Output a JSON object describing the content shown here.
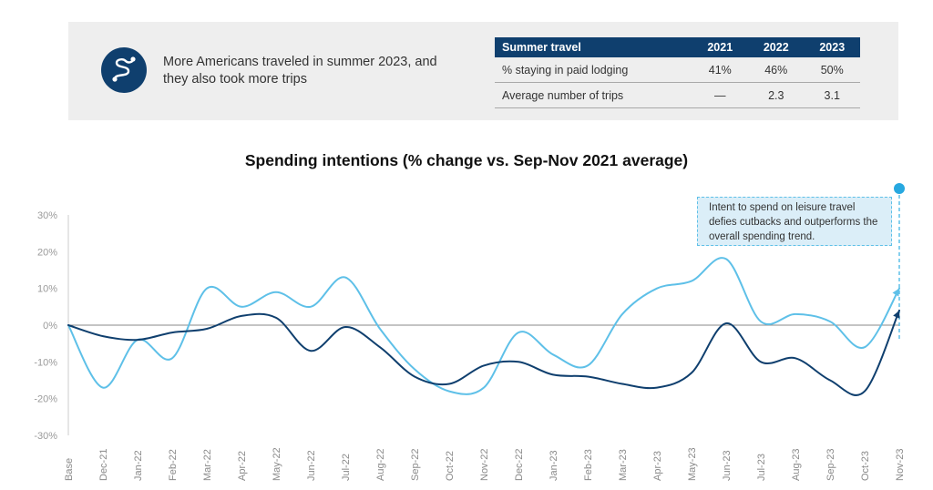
{
  "summary": {
    "icon": "travel-route-icon",
    "headline": "More Americans traveled in summer 2023, and they also took more trips",
    "table": {
      "header": [
        "Summer travel",
        "2021",
        "2022",
        "2023"
      ],
      "rows": [
        [
          "% staying in paid lodging",
          "41%",
          "46%",
          "50%"
        ],
        [
          "Average number of trips",
          "—",
          "2.3",
          "3.1"
        ]
      ]
    }
  },
  "chart_data": {
    "type": "line",
    "title": "Spending intentions (% change vs. Sep-Nov 2021 average)",
    "xlabel": "",
    "ylabel": "",
    "categories": [
      "Base",
      "Dec-21",
      "Jan-22",
      "Feb-22",
      "Mar-22",
      "Apr-22",
      "May-22",
      "Jun-22",
      "Jul-22",
      "Aug-22",
      "Sep-22",
      "Oct-22",
      "Nov-22",
      "Dec-22",
      "Jan-23",
      "Feb-23",
      "Mar-23",
      "Apr-23",
      "May-23",
      "Jun-23",
      "Jul-23",
      "Aug-23",
      "Sep-23",
      "Oct-23",
      "Nov-23"
    ],
    "ylim": [
      -30,
      30
    ],
    "yticks": [
      -30,
      -20,
      -10,
      0,
      10,
      20,
      30
    ],
    "ytick_labels": [
      "-30%",
      "-20%",
      "-10%",
      "0%",
      "10%",
      "20%",
      "30%"
    ],
    "grid": false,
    "legend": "none",
    "series": [
      {
        "color": "#5ec0e8",
        "values": [
          0,
          -17,
          -4,
          -9,
          10,
          5,
          9,
          5,
          13,
          -1,
          -12,
          -18,
          -17,
          -2,
          -8,
          -11,
          3,
          10,
          12,
          18,
          1,
          3,
          1,
          -6,
          10
        ]
      },
      {
        "color": "#0f3f6e",
        "values": [
          0,
          -3,
          -4,
          -2,
          -1,
          2.5,
          2,
          -7,
          -0.5,
          -6,
          -14,
          -16,
          -11,
          -10,
          -13.5,
          -14,
          -16,
          -17,
          -13,
          0.5,
          -10,
          -9,
          -15,
          -18,
          4
        ]
      }
    ],
    "annotation": {
      "text": "Intent to spend on leisure travel defies cutbacks and outperforms the overall spending trend.",
      "category": "Nov-23",
      "color": "#5ec0e8"
    }
  }
}
